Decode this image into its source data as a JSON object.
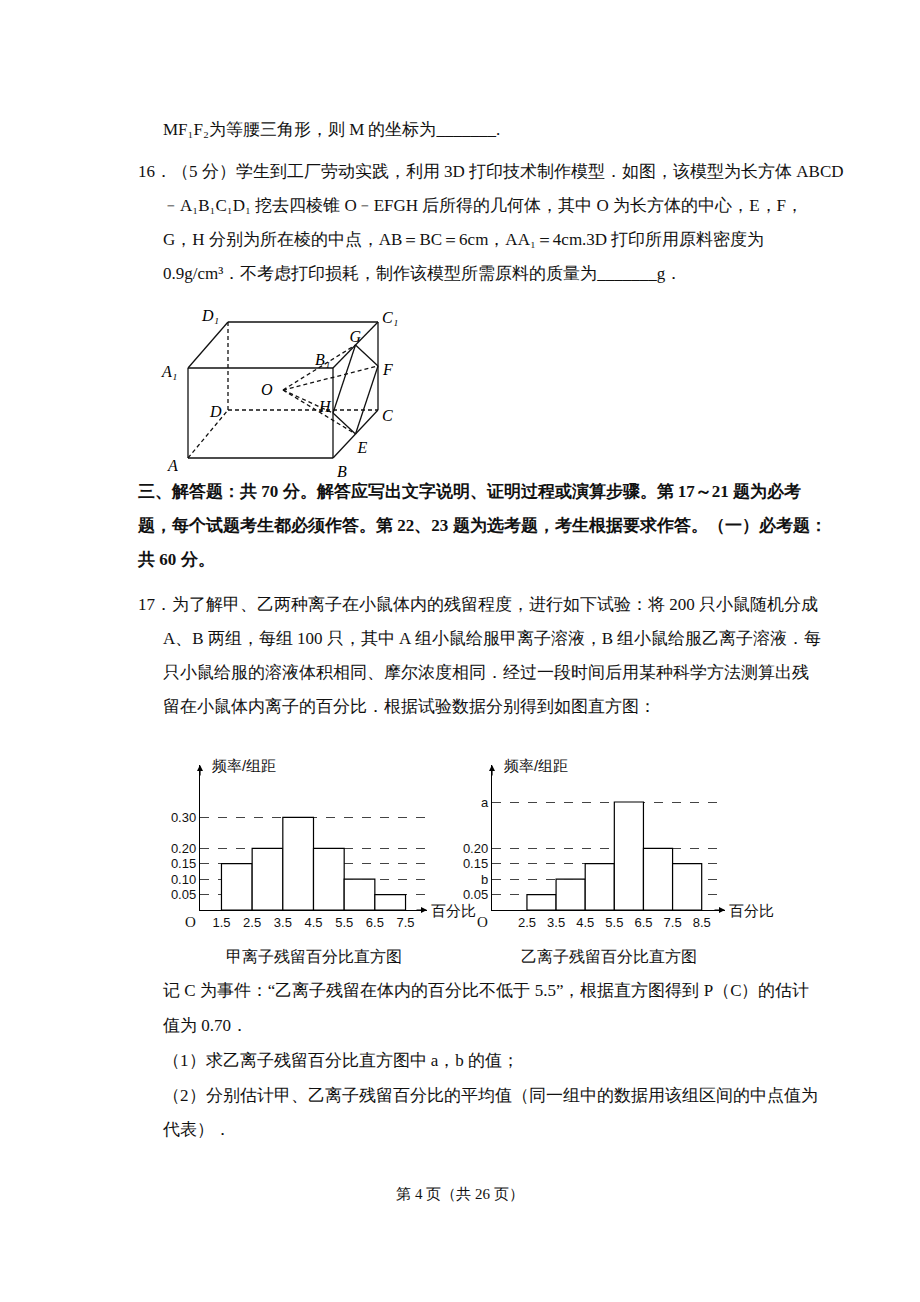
{
  "document": {
    "top_lines": [
      "MF₁F₂为等腰三角形，则 M 的坐标为_______."
    ],
    "q16": [
      "16．（5 分）学生到工厂劳动实践，利用 3D 打印技术制作模型．如图，该模型为长方体 ABCD",
      "﹣A₁B₁C₁D₁ 挖去四棱锥 O﹣EFGH 后所得的几何体，其中 O 为长方体的中心，E，F，",
      "G，H 分别为所在棱的中点，AB＝BC＝6cm，AA₁＝4cm.3D 打印所用原料密度为",
      "0.9g/cm³．不考虑打印损耗，制作该模型所需原料的质量为_______g．"
    ],
    "diagram": {
      "labels": {
        "A": "A",
        "B": "B",
        "C": "C",
        "D": "D",
        "A1": "A₁",
        "B1": "B₁",
        "C1": "C₁",
        "D1": "D₁",
        "E": "E",
        "F": "F",
        "G": "G",
        "H": "H",
        "O": "O"
      }
    },
    "section": [
      "三、解答题：共 70 分。解答应写出文字说明、证明过程或演算步骤。第 17～21 题为必考",
      "题，每个试题考生都必须作答。第 22、23 题为选考题，考生根据要求作答。（一）必考题：",
      "共 60 分。"
    ],
    "q17": [
      "17．为了解甲、乙两种离子在小鼠体内的残留程度，进行如下试验：将 200 只小鼠随机分成",
      "A、B 两组，每组 100 只，其中 A 组小鼠给服甲离子溶液，B 组小鼠给服乙离子溶液．每",
      "只小鼠给服的溶液体积相同、摩尔浓度相同．经过一段时间后用某种科学方法测算出残",
      "留在小鼠体内离子的百分比．根据试验数据分别得到如图直方图："
    ],
    "q17_after": [
      "记 C 为事件：“乙离子残留在体内的百分比不低于 5.5”，根据直方图得到 P（C）的估计",
      "值为 0.70．",
      "（1）求乙离子残留百分比直方图中 a，b 的值；",
      "（2）分别估计甲、乙离子残留百分比的平均值（同一组中的数据用该组区间的中点值为",
      "代表）．"
    ],
    "footer": "第 4 页（共 26 页）"
  },
  "chart_data": [
    {
      "type": "histogram",
      "title": "甲离子残留百分比直方图",
      "x_label": "百分比",
      "y_label": "频率/组距",
      "origin_label": "O",
      "bins": [
        1.5,
        2.5,
        3.5,
        4.5,
        5.5,
        6.5,
        7.5
      ],
      "values": [
        0.15,
        0.2,
        0.3,
        0.2,
        0.1,
        0.05
      ],
      "color": "#ffffff",
      "xlim": [
        0.8,
        8.2
      ],
      "xticks": [
        1.5,
        2.5,
        3.5,
        4.5,
        5.5,
        6.5,
        7.5
      ],
      "ylim": [
        0,
        0.47
      ],
      "yticks": [
        0.05,
        {
          "value": 0.1,
          "label": "0.10"
        },
        0.15,
        {
          "value": 0.2,
          "label": "0.20"
        },
        {
          "value": 0.3,
          "label": "0.30"
        }
      ],
      "grid": true
    },
    {
      "type": "histogram",
      "title": "乙离子残留百分比直方图",
      "x_label": "百分比",
      "y_label": "频率/组距",
      "origin_label": "O",
      "bins": [
        2.5,
        3.5,
        4.5,
        5.5,
        6.5,
        7.5,
        8.5
      ],
      "values": [
        0.05,
        0.1,
        0.15,
        0.35,
        0.2,
        0.15
      ],
      "color": "#ffffff",
      "xlim": [
        1.3,
        9.3
      ],
      "xticks": [
        2.5,
        3.5,
        4.5,
        5.5,
        6.5,
        7.5,
        8.5
      ],
      "ylim": [
        0,
        0.47
      ],
      "yticks": [
        0.05,
        {
          "value": 0.1,
          "label": "b"
        },
        0.15,
        {
          "value": 0.2,
          "label": "0.20"
        },
        {
          "value": 0.35,
          "label": "a"
        }
      ],
      "grid": true
    }
  ]
}
